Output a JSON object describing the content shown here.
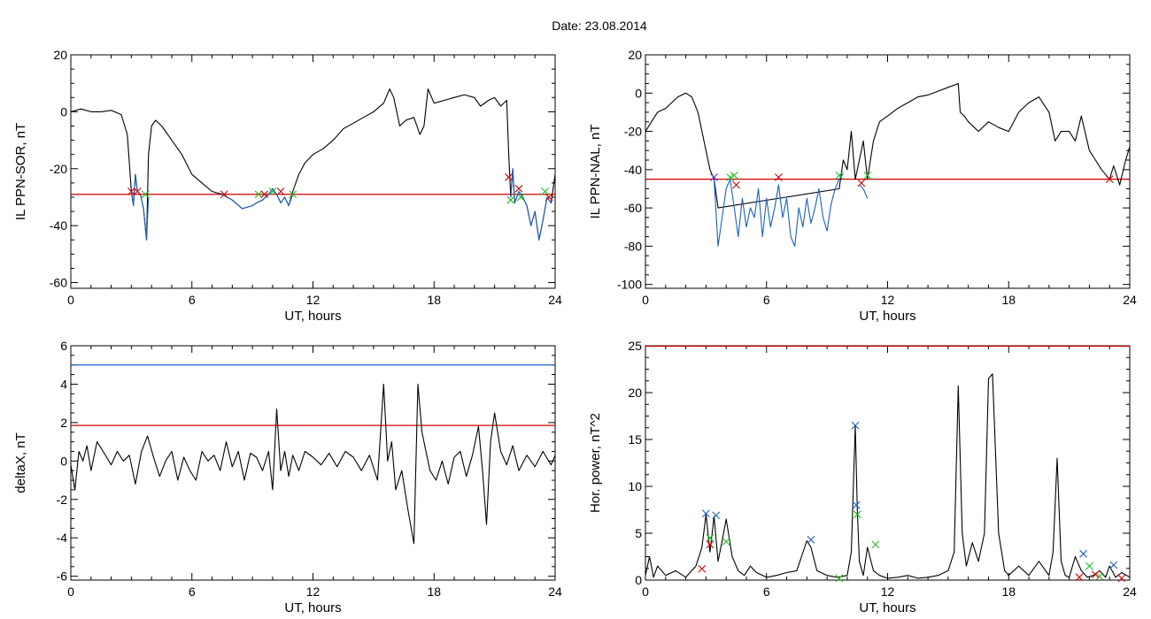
{
  "header": {
    "date_label": "Date:  23.08.2014"
  },
  "chart_data": [
    {
      "type": "line",
      "id": "panel1",
      "xlabel": "UT, hours",
      "ylabel": "IL PPN-SOR, nT",
      "xlim": [
        0,
        24
      ],
      "ylim": [
        -62,
        20
      ],
      "xticks": [
        0,
        6,
        12,
        18,
        24
      ],
      "yticks": [
        -60,
        -40,
        -20,
        0,
        20
      ],
      "threshold": -29,
      "threshold_color": "#d00000",
      "series": [
        {
          "color": "#000000",
          "x": [
            0,
            0.5,
            1,
            1.5,
            2,
            2.5,
            2.8,
            3.0,
            3.1,
            3.2,
            3.3,
            3.45,
            3.6,
            3.75,
            3.85,
            4.0,
            4.2,
            4.5,
            5,
            5.5,
            6,
            6.5,
            7,
            7.5,
            8,
            8.5,
            9,
            9.2,
            9.5,
            9.8,
            10,
            10.2,
            10.4,
            10.6,
            10.8,
            11,
            11.3,
            11.6,
            12,
            12.5,
            13,
            13.5,
            14,
            14.5,
            15,
            15.5,
            15.8,
            16,
            16.3,
            16.6,
            17,
            17.3,
            17.5,
            17.7,
            18,
            18.5,
            19,
            19.5,
            20,
            20.3,
            20.7,
            21,
            21.3,
            21.6,
            21.7,
            21.8,
            21.9,
            22,
            22.2,
            22.4,
            22.6,
            22.8,
            23,
            23.2,
            23.4,
            23.6,
            23.8,
            24
          ],
          "y": [
            0,
            1,
            0,
            0,
            0.5,
            -1,
            -8,
            -28,
            -33,
            -22,
            -28,
            -29,
            -34,
            -45,
            -15,
            -5,
            -3,
            -5,
            -10,
            -15,
            -22,
            -25,
            -28,
            -29,
            -31,
            -34,
            -33,
            -32,
            -31,
            -29,
            -27,
            -29,
            -32,
            -30,
            -33,
            -28,
            -22,
            -18,
            -15,
            -13,
            -10,
            -6,
            -4,
            -2,
            0,
            3,
            8,
            5,
            -5,
            -3,
            -2,
            -8,
            -5,
            8,
            3,
            4,
            5,
            6,
            5,
            2,
            4,
            5,
            2,
            4,
            -15,
            -30,
            -20,
            -32,
            -28,
            -30,
            -33,
            -40,
            -35,
            -45,
            -38,
            -30,
            -32,
            -22
          ]
        },
        {
          "color": "#1a5fc8",
          "x": [
            3.0,
            3.1,
            3.2,
            3.3,
            3.45,
            3.6,
            3.75,
            3.85
          ],
          "y": [
            -28,
            -33,
            -22,
            -28,
            -29,
            -34,
            -45,
            -30
          ]
        },
        {
          "color": "#1a5fc8",
          "x": [
            7.5,
            8,
            8.5,
            9,
            9.2,
            9.5,
            9.8,
            10,
            10.2,
            10.4,
            10.6,
            10.8,
            11
          ],
          "y": [
            -29,
            -31,
            -34,
            -33,
            -32,
            -31,
            -29,
            -27,
            -29,
            -32,
            -30,
            -33,
            -29
          ]
        },
        {
          "color": "#1a5fc8",
          "x": [
            21.8,
            21.9,
            22,
            22.2,
            22.4,
            22.6,
            22.8,
            23,
            23.2,
            23.4,
            23.6,
            23.8
          ],
          "y": [
            -30,
            -20,
            -32,
            -28,
            -30,
            -33,
            -40,
            -35,
            -45,
            -38,
            -30,
            -32
          ]
        }
      ],
      "markers": [
        {
          "x": 3.0,
          "y": -28,
          "color": "#d00000"
        },
        {
          "x": 3.3,
          "y": -28,
          "color": "#d00000"
        },
        {
          "x": 3.7,
          "y": -29,
          "color": "#22bb22"
        },
        {
          "x": 7.6,
          "y": -29,
          "color": "#d00000"
        },
        {
          "x": 9.3,
          "y": -29,
          "color": "#22bb22"
        },
        {
          "x": 9.6,
          "y": -29,
          "color": "#d00000"
        },
        {
          "x": 10.0,
          "y": -28,
          "color": "#22bb22"
        },
        {
          "x": 10.4,
          "y": -28,
          "color": "#d00000"
        },
        {
          "x": 11.0,
          "y": -29,
          "color": "#22bb22"
        },
        {
          "x": 21.7,
          "y": -23,
          "color": "#d00000"
        },
        {
          "x": 21.8,
          "y": -31,
          "color": "#22bb22"
        },
        {
          "x": 22.2,
          "y": -27,
          "color": "#d00000"
        },
        {
          "x": 22.3,
          "y": -30,
          "color": "#22bb22"
        },
        {
          "x": 23.5,
          "y": -28,
          "color": "#22bb22"
        },
        {
          "x": 23.7,
          "y": -30,
          "color": "#d00000"
        }
      ]
    },
    {
      "type": "line",
      "id": "panel2",
      "xlabel": "UT, hours",
      "ylabel": "IL PPN-NAL, nT",
      "xlim": [
        0,
        24
      ],
      "ylim": [
        -102,
        20
      ],
      "xticks": [
        0,
        6,
        12,
        18,
        24
      ],
      "yticks": [
        -100,
        -80,
        -60,
        -40,
        -20,
        0,
        20
      ],
      "threshold": -45,
      "threshold_color": "#d00000",
      "series": [
        {
          "color": "#000000",
          "x": [
            0,
            0.3,
            0.6,
            1,
            1.3,
            1.6,
            2,
            2.3,
            2.6,
            2.9,
            3.2,
            3.4,
            3.6,
            9.6,
            9.8,
            10,
            10.2,
            10.4,
            10.6,
            10.8,
            11,
            11.3,
            11.6,
            12,
            12.5,
            13,
            13.5,
            14,
            14.5,
            15,
            15.5,
            15.6,
            15.8,
            16,
            16.5,
            17,
            17.5,
            18,
            18.5,
            19,
            19.5,
            20,
            20.3,
            20.6,
            21,
            21.3,
            21.6,
            22,
            22.3,
            22.6,
            23,
            23.2,
            23.5,
            23.8,
            24
          ],
          "y": [
            -20,
            -15,
            -10,
            -8,
            -5,
            -2,
            0,
            -2,
            -10,
            -25,
            -40,
            -45,
            -60,
            -50,
            -35,
            -40,
            -20,
            -45,
            -35,
            -25,
            -45,
            -25,
            -15,
            -12,
            -8,
            -5,
            -2,
            -1,
            1,
            3,
            5,
            -10,
            -12,
            -15,
            -20,
            -15,
            -18,
            -20,
            -10,
            -5,
            -2,
            -10,
            -25,
            -20,
            -20,
            -25,
            -12,
            -30,
            -35,
            -40,
            -45,
            -38,
            -48,
            -35,
            -28
          ]
        },
        {
          "color": "#1a5fc8",
          "x": [
            3.4,
            3.6,
            3.8,
            4.0,
            4.2,
            4.4,
            4.6,
            4.8,
            5.0,
            5.2,
            5.4,
            5.6,
            5.8,
            6.0,
            6.2,
            6.4,
            6.6,
            6.8,
            7.0,
            7.2,
            7.4,
            7.6,
            7.8,
            8.0,
            8.2,
            8.4,
            8.6,
            8.8,
            9.0,
            9.2,
            9.4,
            9.6,
            9.8
          ],
          "y": [
            -45,
            -80,
            -65,
            -50,
            -45,
            -60,
            -75,
            -55,
            -70,
            -60,
            -65,
            -50,
            -75,
            -55,
            -70,
            -60,
            -48,
            -65,
            -55,
            -75,
            -80,
            -60,
            -70,
            -55,
            -68,
            -60,
            -50,
            -65,
            -72,
            -58,
            -50,
            -45,
            -42
          ]
        },
        {
          "color": "#1a5fc8",
          "x": [
            10.6,
            10.8,
            11.0
          ],
          "y": [
            -48,
            -50,
            -55
          ]
        }
      ],
      "markers": [
        {
          "x": 3.4,
          "y": -44,
          "color": "#6633cc"
        },
        {
          "x": 4.2,
          "y": -44,
          "color": "#22bb22"
        },
        {
          "x": 4.4,
          "y": -43,
          "color": "#22bb22"
        },
        {
          "x": 4.5,
          "y": -48,
          "color": "#d00000"
        },
        {
          "x": 6.6,
          "y": -44,
          "color": "#d00000"
        },
        {
          "x": 9.6,
          "y": -43,
          "color": "#22bb22"
        },
        {
          "x": 10.7,
          "y": -47,
          "color": "#d00000"
        },
        {
          "x": 11.0,
          "y": -43,
          "color": "#22bb22"
        },
        {
          "x": 23.0,
          "y": -45,
          "color": "#d00000"
        }
      ]
    },
    {
      "type": "line",
      "id": "panel3",
      "xlabel": "UT, hours",
      "ylabel": "deltaX, nT",
      "xlim": [
        0,
        24
      ],
      "ylim": [
        -6.2,
        6
      ],
      "xticks": [
        0,
        6,
        12,
        18,
        24
      ],
      "yticks": [
        -6,
        -4,
        -2,
        0,
        2,
        4,
        6
      ],
      "hlines": [
        {
          "y": 5,
          "color": "#1a5fc8"
        },
        {
          "y": 1.85,
          "color": "#d00000"
        }
      ],
      "series": [
        {
          "color": "#000000",
          "x": [
            0,
            0.2,
            0.4,
            0.6,
            0.8,
            1,
            1.3,
            1.6,
            2,
            2.3,
            2.6,
            2.9,
            3.2,
            3.5,
            3.8,
            4.1,
            4.4,
            4.7,
            5,
            5.3,
            5.6,
            5.9,
            6.2,
            6.5,
            6.8,
            7.1,
            7.4,
            7.7,
            8,
            8.3,
            8.6,
            8.9,
            9.2,
            9.5,
            9.8,
            10,
            10.2,
            10.4,
            10.6,
            10.8,
            11,
            11.3,
            11.6,
            12,
            12.4,
            12.8,
            13.2,
            13.6,
            14,
            14.4,
            14.8,
            15.2,
            15.5,
            15.7,
            15.9,
            16.1,
            16.4,
            16.7,
            17,
            17.2,
            17.4,
            17.6,
            17.8,
            18.1,
            18.4,
            18.7,
            19,
            19.3,
            19.6,
            19.9,
            20.2,
            20.4,
            20.6,
            20.8,
            21,
            21.3,
            21.6,
            21.9,
            22.2,
            22.6,
            23,
            23.4,
            23.8,
            24
          ],
          "y": [
            -0.2,
            -1.5,
            0.5,
            0,
            0.8,
            -0.5,
            1,
            0.5,
            -0.2,
            0.5,
            0,
            0.3,
            -1.2,
            0.5,
            1.3,
            0.2,
            -0.8,
            0,
            0.5,
            -1,
            0.2,
            -0.5,
            -1,
            0.5,
            0,
            0.3,
            -0.5,
            1,
            -0.3,
            0.5,
            -1,
            0.4,
            0.2,
            -0.5,
            0.5,
            -1.5,
            2.7,
            -0.5,
            0.5,
            -0.8,
            0.3,
            -0.5,
            0.5,
            0.2,
            -0.2,
            0.4,
            -0.3,
            0.5,
            0.2,
            -0.5,
            0.3,
            -1,
            4,
            0,
            1,
            -1.5,
            -0.5,
            -2.5,
            -4.3,
            4,
            1.5,
            0.5,
            -0.5,
            -1,
            0,
            -1.2,
            0.2,
            0.5,
            -0.8,
            0.3,
            1.8,
            -0.5,
            -3.3,
            1,
            2.5,
            0.5,
            -0.2,
            0.8,
            -0.5,
            0.3,
            -0.3,
            0.5,
            -0.2,
            0.3
          ]
        }
      ],
      "markers": []
    },
    {
      "type": "line",
      "id": "panel4",
      "xlabel": "UT, hours",
      "ylabel": "Hor. power, nT^2",
      "xlim": [
        0,
        24
      ],
      "ylim": [
        0,
        25
      ],
      "xticks": [
        0,
        6,
        12,
        18,
        24
      ],
      "yticks": [
        0,
        5,
        10,
        15,
        20,
        25
      ],
      "hlines": [
        {
          "y": 24.95,
          "color": "#d00000"
        }
      ],
      "series": [
        {
          "color": "#000000",
          "x": [
            0,
            0.2,
            0.4,
            0.6,
            1,
            1.5,
            2,
            2.5,
            2.8,
            3.0,
            3.2,
            3.4,
            3.6,
            3.8,
            4.0,
            4.3,
            4.6,
            4.9,
            5.2,
            5.5,
            6,
            6.5,
            7,
            7.5,
            8,
            8.2,
            8.5,
            9,
            9.5,
            10,
            10.2,
            10.4,
            10.5,
            10.6,
            10.8,
            11,
            11.3,
            11.6,
            12,
            12.5,
            13,
            13.5,
            14,
            14.5,
            15,
            15.3,
            15.5,
            15.7,
            15.9,
            16.2,
            16.5,
            16.8,
            17.0,
            17.2,
            17.5,
            17.8,
            18,
            18.5,
            19,
            19.5,
            20,
            20.2,
            20.4,
            20.6,
            20.8,
            21,
            21.3,
            21.6,
            21.9,
            22.2,
            22.5,
            22.8,
            23,
            23.3,
            23.6,
            24
          ],
          "y": [
            0.5,
            2.5,
            0.3,
            1.5,
            0.5,
            1,
            0.3,
            1.5,
            3.5,
            7,
            3,
            6.8,
            2,
            4.2,
            6.5,
            2.5,
            1,
            0.5,
            1.5,
            0.8,
            0.3,
            0.5,
            0.8,
            1,
            4.2,
            3.5,
            1,
            0.5,
            0.3,
            0.5,
            3,
            16.5,
            7.5,
            2,
            0.5,
            3.5,
            1,
            0.5,
            0.2,
            0.3,
            0.5,
            0.2,
            0.3,
            0.5,
            1,
            3,
            20.7,
            5,
            1.5,
            4,
            2,
            5,
            21.5,
            22,
            5,
            1,
            0.5,
            1.5,
            0.5,
            2,
            0.5,
            3,
            13,
            2,
            0.5,
            0.3,
            2.5,
            1,
            0.3,
            0.5,
            1,
            0.3,
            1.5,
            0.3,
            0.8,
            0.3
          ]
        }
      ],
      "markers": [
        {
          "x": 3.0,
          "y": 7.1,
          "color": "#1a5fc8"
        },
        {
          "x": 3.5,
          "y": 6.9,
          "color": "#1a5fc8"
        },
        {
          "x": 8.2,
          "y": 4.3,
          "color": "#1a5fc8"
        },
        {
          "x": 10.4,
          "y": 16.5,
          "color": "#1a5fc8"
        },
        {
          "x": 10.45,
          "y": 8,
          "color": "#1a5fc8"
        },
        {
          "x": 21.7,
          "y": 2.8,
          "color": "#1a5fc8"
        },
        {
          "x": 23.2,
          "y": 1.6,
          "color": "#1a5fc8"
        },
        {
          "x": 3.2,
          "y": 4.5,
          "color": "#22bb22"
        },
        {
          "x": 4.0,
          "y": 4.1,
          "color": "#22bb22"
        },
        {
          "x": 10.5,
          "y": 7,
          "color": "#22bb22"
        },
        {
          "x": 11.4,
          "y": 3.8,
          "color": "#22bb22"
        },
        {
          "x": 9.6,
          "y": 0.2,
          "color": "#22bb22"
        },
        {
          "x": 22.0,
          "y": 1.5,
          "color": "#22bb22"
        },
        {
          "x": 22.5,
          "y": 0.4,
          "color": "#22bb22"
        },
        {
          "x": 2.8,
          "y": 1.2,
          "color": "#d00000"
        },
        {
          "x": 3.2,
          "y": 3.8,
          "color": "#d00000"
        },
        {
          "x": 21.5,
          "y": 0.3,
          "color": "#d00000"
        },
        {
          "x": 22.3,
          "y": 0.6,
          "color": "#d00000"
        },
        {
          "x": 23.6,
          "y": 0.2,
          "color": "#d00000"
        }
      ]
    }
  ]
}
